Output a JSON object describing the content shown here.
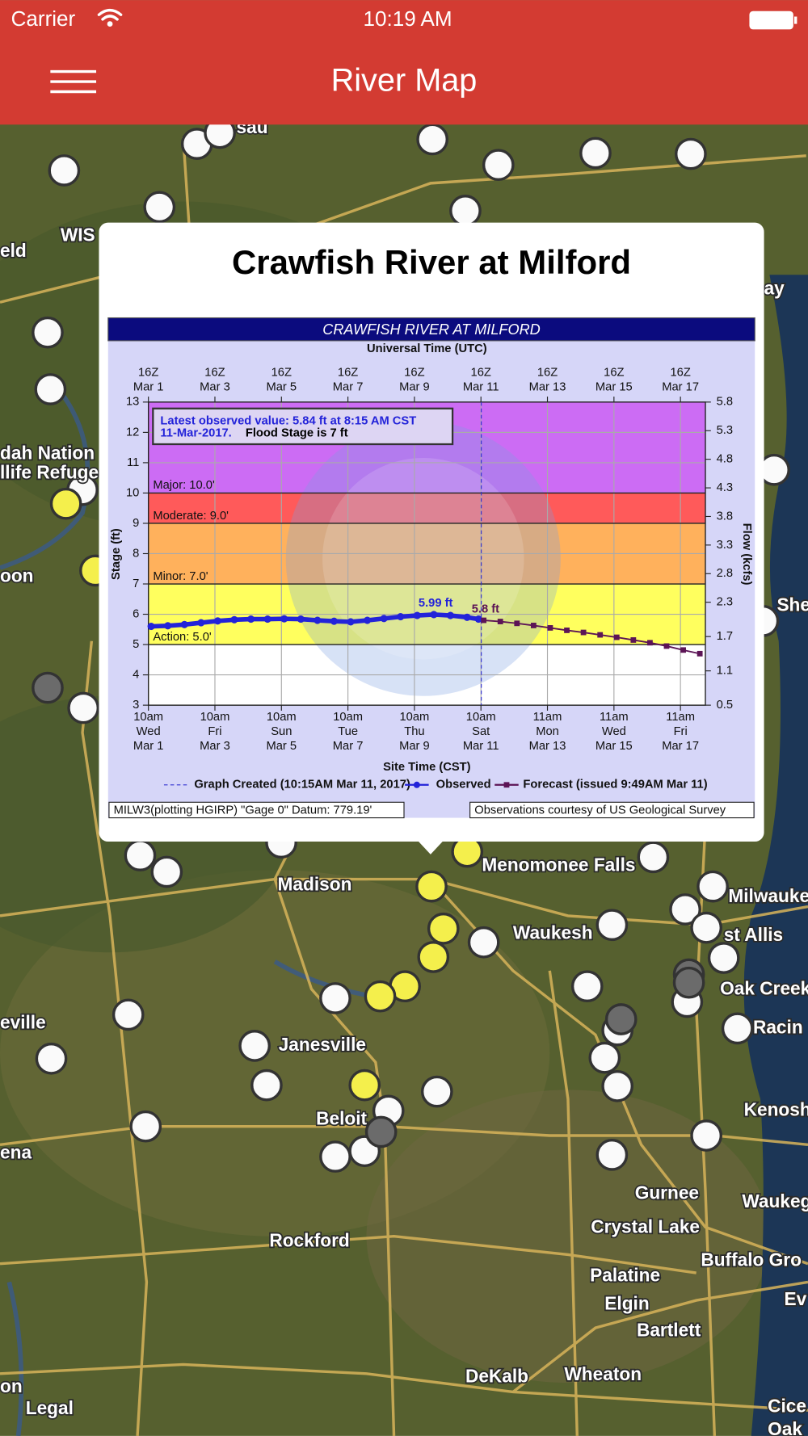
{
  "status_bar": {
    "carrier": "Carrier",
    "time": "10:19 AM"
  },
  "nav_bar": {
    "title": "River Map"
  },
  "popup": {
    "title": "Crawfish River at Milford"
  },
  "chart_data": {
    "type": "line",
    "title": "CRAWFISH RIVER AT MILFORD",
    "top_axis_label": "Universal Time (UTC)",
    "x_label": "Site Time (CST)",
    "y_label": "Stage (ft)",
    "y2_label": "Flow (kcfs)",
    "xlim": [
      "2017-03-01T10:00",
      "2017-03-18T04:00"
    ],
    "xticks": [
      {
        "value": "2017-03-01T10:00",
        "label": [
          "10am",
          "Wed",
          "Mar 1"
        ]
      },
      {
        "value": "2017-03-03T10:00",
        "label": [
          "10am",
          "Fri",
          "Mar 3"
        ]
      },
      {
        "value": "2017-03-05T10:00",
        "label": [
          "10am",
          "Sun",
          "Mar 5"
        ]
      },
      {
        "value": "2017-03-07T10:00",
        "label": [
          "10am",
          "Tue",
          "Mar 7"
        ]
      },
      {
        "value": "2017-03-09T10:00",
        "label": [
          "10am",
          "Thu",
          "Mar 9"
        ]
      },
      {
        "value": "2017-03-11T10:00",
        "label": [
          "10am",
          "Sat",
          "Mar 11"
        ]
      },
      {
        "value": "2017-03-13T10:00",
        "label": [
          "11am",
          "Mon",
          "Mar 13"
        ]
      },
      {
        "value": "2017-03-15T10:00",
        "label": [
          "11am",
          "Wed",
          "Mar 15"
        ]
      },
      {
        "value": "2017-03-17T10:00",
        "label": [
          "11am",
          "Fri",
          "Mar 17"
        ]
      }
    ],
    "top_xticks": [
      {
        "value": "2017-03-01T10:00",
        "label": [
          "16Z",
          "Mar  1"
        ]
      },
      {
        "value": "2017-03-03T10:00",
        "label": [
          "16Z",
          "Mar  3"
        ]
      },
      {
        "value": "2017-03-05T10:00",
        "label": [
          "16Z",
          "Mar  5"
        ]
      },
      {
        "value": "2017-03-07T10:00",
        "label": [
          "16Z",
          "Mar  7"
        ]
      },
      {
        "value": "2017-03-09T10:00",
        "label": [
          "16Z",
          "Mar  9"
        ]
      },
      {
        "value": "2017-03-11T10:00",
        "label": [
          "16Z",
          "Mar 11"
        ]
      },
      {
        "value": "2017-03-13T10:00",
        "label": [
          "16Z",
          "Mar 13"
        ]
      },
      {
        "value": "2017-03-15T10:00",
        "label": [
          "16Z",
          "Mar 15"
        ]
      },
      {
        "value": "2017-03-17T10:00",
        "label": [
          "16Z",
          "Mar 17"
        ]
      }
    ],
    "ylim": [
      3,
      13
    ],
    "yticks": [
      3,
      4,
      5,
      6,
      7,
      8,
      9,
      10,
      11,
      12,
      13
    ],
    "y2lim": [
      0.5,
      5.8
    ],
    "y2ticks": [
      0.5,
      1.1,
      1.7,
      2.3,
      2.8,
      3.3,
      3.8,
      4.3,
      4.8,
      5.3,
      5.8
    ],
    "grid": true,
    "flood_categories": [
      {
        "label": "Action:  5.0'",
        "value": 5,
        "color": "#ffff5e"
      },
      {
        "label": "Minor:  7.0'",
        "value": 7,
        "color": "#ffb15c"
      },
      {
        "label": "Moderate:  9.0'",
        "value": 9,
        "color": "#ff5a5a"
      },
      {
        "label": "Major:  10.0'",
        "value": 10,
        "color": "#cc6cf4"
      }
    ],
    "series": [
      {
        "name": "Observed",
        "color": "#2323d9",
        "marker": "circle",
        "x": [
          "2017-03-01T12:00",
          "2017-03-02T00:00",
          "2017-03-02T12:00",
          "2017-03-03T00:00",
          "2017-03-03T12:00",
          "2017-03-04T00:00",
          "2017-03-04T12:00",
          "2017-03-05T00:00",
          "2017-03-05T12:00",
          "2017-03-06T00:00",
          "2017-03-06T12:00",
          "2017-03-07T00:00",
          "2017-03-07T12:00",
          "2017-03-08T00:00",
          "2017-03-08T12:00",
          "2017-03-09T00:00",
          "2017-03-09T12:00",
          "2017-03-10T00:00",
          "2017-03-10T12:00",
          "2017-03-11T00:00",
          "2017-03-11T08:15"
        ],
        "values": [
          5.6,
          5.62,
          5.66,
          5.72,
          5.78,
          5.82,
          5.84,
          5.84,
          5.85,
          5.84,
          5.8,
          5.77,
          5.75,
          5.8,
          5.86,
          5.92,
          5.96,
          5.99,
          5.96,
          5.9,
          5.84
        ]
      },
      {
        "name": "Forecast (issued 9:49AM Mar 11)",
        "color": "#5c1456",
        "marker": "square",
        "x": [
          "2017-03-11T12:00",
          "2017-03-12T00:00",
          "2017-03-12T12:00",
          "2017-03-13T00:00",
          "2017-03-13T12:00",
          "2017-03-14T00:00",
          "2017-03-14T12:00",
          "2017-03-15T00:00",
          "2017-03-15T12:00",
          "2017-03-16T00:00",
          "2017-03-16T12:00",
          "2017-03-17T00:00",
          "2017-03-17T12:00",
          "2017-03-18T00:00"
        ],
        "values": [
          5.8,
          5.76,
          5.7,
          5.63,
          5.55,
          5.47,
          5.4,
          5.32,
          5.24,
          5.15,
          5.06,
          4.95,
          4.82,
          4.7
        ]
      }
    ],
    "graph_created": {
      "name": "Graph Created (10:15AM Mar 11, 2017)",
      "x": "2017-03-11T10:15"
    },
    "annotations": [
      {
        "text": "5.99 ft",
        "x": "2017-03-10T00:00",
        "value": 5.99,
        "color": "#2323d9"
      },
      {
        "text": "5.8 ft",
        "x": "2017-03-11T12:00",
        "value": 5.8,
        "color": "#5c1456"
      }
    ],
    "info_box": {
      "line1": "Latest observed value: 5.84 ft at 8:15 AM CST",
      "line2_date": "11-Mar-2017.",
      "line2_flood": "Flood Stage is 7 ft"
    },
    "footer_left": "MILW3(plotting HGIRP) \"Gage 0\" Datum: 779.19'",
    "footer_right": "Observations courtesy of US Geological Survey"
  },
  "map": {
    "labels": [
      "sau",
      "WIS",
      "eld",
      "dah Nation",
      "llife Refuge",
      "oon",
      "ay",
      "She",
      "Madison",
      "Menomonee Falls",
      "Milwauke",
      "Waukesh",
      "st Allis",
      "Oak Creek",
      "eville",
      "Janesville",
      "Racin",
      "Beloit",
      "Kenosh",
      "ena",
      "Gurnee",
      "Waukeg",
      "Crystal Lake",
      "Rockford",
      "Buffalo Gro",
      "Palatine",
      "Ev",
      "Elgin",
      "Bartlett",
      "DeKalb",
      "Wheaton",
      "on",
      "Legal",
      "Cice",
      "Oak"
    ]
  }
}
